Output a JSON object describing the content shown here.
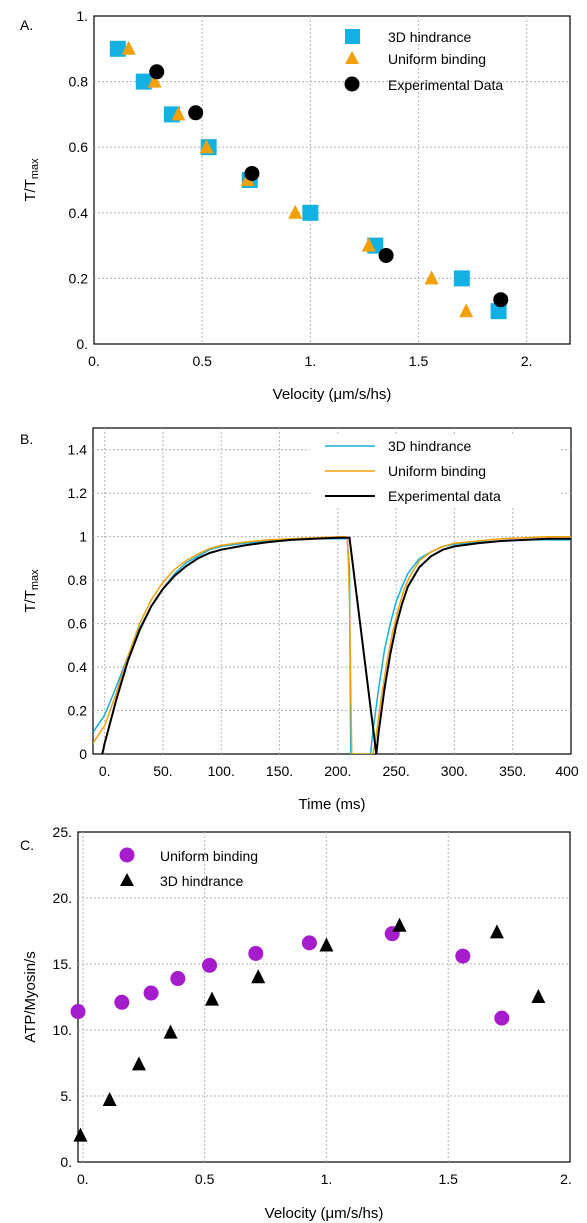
{
  "panels": [
    {
      "id": "A",
      "panel_label": "A.",
      "xlabel": "Velocity (μm/s/hs)",
      "ylabel_main": "T/T",
      "ylabel_sub": "max",
      "xticks": [
        "0.",
        "0.5",
        "1.",
        "1.5",
        "2."
      ],
      "yticks": [
        "0.",
        "0.2",
        "0.4",
        "0.6",
        "0.8",
        "1."
      ]
    },
    {
      "id": "B",
      "panel_label": "B.",
      "xlabel": "Time (ms)",
      "ylabel_main": "T/T",
      "ylabel_sub": "max",
      "xticks": [
        "0.",
        "50.",
        "100.",
        "150.",
        "200.",
        "250.",
        "300.",
        "350.",
        "400"
      ],
      "yticks": [
        "0",
        "0.2",
        "0.4",
        "0.6",
        "0.8",
        "1",
        "1.2",
        "1.4"
      ]
    },
    {
      "id": "C",
      "panel_label": "C.",
      "xlabel": "Velocity (μm/s/hs)",
      "ylabel": "ATP/Myosin/s",
      "xticks": [
        "0.",
        "0.5",
        "1.",
        "1.5",
        "2."
      ],
      "yticks": [
        "0.",
        "5.",
        "10.",
        "15.",
        "20.",
        "25."
      ]
    }
  ],
  "colors": {
    "cyan": "#12b0e3",
    "orange": "#f2a007",
    "black": "#000000",
    "purple": "#a41ccc"
  },
  "chart_data": [
    {
      "type": "scatter",
      "panel": "A",
      "xlabel": "Velocity (μm/s/hs)",
      "ylabel": "T/Tmax",
      "xlim": [
        0,
        2.2
      ],
      "ylim": [
        0,
        1
      ],
      "grid": true,
      "legend_position": "top-right",
      "series": [
        {
          "name": "3D hindrance",
          "marker": "square",
          "color": "#12b0e3",
          "x": [
            0.11,
            0.23,
            0.36,
            0.53,
            0.72,
            1.0,
            1.3,
            1.7,
            1.87
          ],
          "y": [
            0.9,
            0.8,
            0.7,
            0.6,
            0.5,
            0.4,
            0.3,
            0.2,
            0.1
          ]
        },
        {
          "name": "Uniform binding",
          "marker": "triangle",
          "color": "#f2a007",
          "x": [
            0.16,
            0.28,
            0.39,
            0.52,
            0.71,
            0.93,
            1.27,
            1.56,
            1.72
          ],
          "y": [
            0.9,
            0.8,
            0.7,
            0.6,
            0.5,
            0.4,
            0.3,
            0.2,
            0.1
          ]
        },
        {
          "name": "Experimental Data",
          "marker": "circle",
          "color": "#000000",
          "x": [
            0.29,
            0.47,
            0.73,
            1.35,
            1.88
          ],
          "y": [
            0.83,
            0.705,
            0.52,
            0.27,
            0.135
          ]
        }
      ]
    },
    {
      "type": "line",
      "panel": "B",
      "xlabel": "Time (ms)",
      "ylabel": "T/Tmax",
      "xlim": [
        -10,
        400
      ],
      "ylim": [
        0,
        1.5
      ],
      "grid": true,
      "legend_position": "top-right",
      "series": [
        {
          "name": "3D hindrance",
          "color": "#12b0e3",
          "x": [
            -10,
            0,
            10,
            20,
            30,
            40,
            50,
            60,
            70,
            80,
            90,
            100,
            120,
            140,
            160,
            180,
            200,
            208,
            210,
            211,
            228,
            230,
            235,
            240,
            245,
            250,
            255,
            260,
            270,
            280,
            290,
            300,
            320,
            340,
            360,
            380,
            400
          ],
          "y": [
            0.1,
            0.18,
            0.31,
            0.45,
            0.58,
            0.68,
            0.76,
            0.83,
            0.88,
            0.91,
            0.94,
            0.955,
            0.97,
            0.98,
            0.99,
            0.99,
            0.99,
            0.99,
            0.85,
            0,
            0,
            0.1,
            0.3,
            0.48,
            0.6,
            0.7,
            0.77,
            0.83,
            0.9,
            0.93,
            0.955,
            0.965,
            0.975,
            0.98,
            0.985,
            0.985,
            0.985
          ]
        },
        {
          "name": "Uniform binding",
          "color": "#f2a007",
          "x": [
            -10,
            0,
            10,
            20,
            30,
            40,
            50,
            60,
            70,
            80,
            90,
            100,
            120,
            140,
            160,
            180,
            200,
            208,
            209,
            210,
            211,
            212,
            230,
            232,
            237,
            242,
            247,
            252,
            257,
            262,
            270,
            280,
            290,
            300,
            320,
            340,
            360,
            380,
            400
          ],
          "y": [
            0.05,
            0.13,
            0.28,
            0.45,
            0.6,
            0.71,
            0.79,
            0.85,
            0.89,
            0.92,
            0.945,
            0.96,
            0.975,
            0.985,
            0.99,
            0.995,
            1.0,
            1.0,
            0.9,
            0.7,
            0.3,
            0,
            0,
            0.05,
            0.25,
            0.42,
            0.56,
            0.67,
            0.76,
            0.82,
            0.89,
            0.93,
            0.955,
            0.97,
            0.98,
            0.99,
            0.995,
            1.0,
            1.0
          ]
        },
        {
          "name": "Experimental data",
          "color": "#000000",
          "x": [
            -2,
            0,
            10,
            20,
            30,
            40,
            50,
            60,
            70,
            80,
            90,
            100,
            120,
            140,
            160,
            180,
            200,
            210,
            233,
            235,
            240,
            245,
            250,
            255,
            260,
            270,
            280,
            290,
            300,
            320,
            340,
            360,
            380,
            400
          ],
          "y": [
            0,
            0.05,
            0.25,
            0.43,
            0.57,
            0.68,
            0.76,
            0.82,
            0.865,
            0.9,
            0.925,
            0.94,
            0.96,
            0.975,
            0.985,
            0.99,
            0.995,
            0.995,
            0,
            0.1,
            0.3,
            0.46,
            0.59,
            0.69,
            0.77,
            0.86,
            0.91,
            0.94,
            0.955,
            0.97,
            0.98,
            0.985,
            0.99,
            0.99
          ]
        }
      ]
    },
    {
      "type": "scatter",
      "panel": "C",
      "xlabel": "Velocity (μm/s/hs)",
      "ylabel": "ATP/Myosin/s",
      "xlim": [
        -0.02,
        2.0
      ],
      "ylim": [
        0,
        25
      ],
      "grid": true,
      "legend_position": "top-left",
      "series": [
        {
          "name": "Uniform binding",
          "marker": "circle",
          "color": "#a41ccc",
          "x": [
            -0.02,
            0.16,
            0.28,
            0.39,
            0.52,
            0.71,
            0.93,
            1.27,
            1.56,
            1.72
          ],
          "y": [
            11.4,
            12.1,
            12.8,
            13.9,
            14.9,
            15.8,
            16.6,
            17.3,
            15.6,
            10.9
          ]
        },
        {
          "name": "3D hindrance",
          "marker": "triangle",
          "color": "#000000",
          "x": [
            -0.01,
            0.11,
            0.23,
            0.36,
            0.53,
            0.72,
            1.0,
            1.3,
            1.7,
            1.87
          ],
          "y": [
            2.0,
            4.7,
            7.4,
            9.8,
            12.3,
            14.0,
            16.4,
            17.9,
            17.4,
            12.5
          ]
        }
      ]
    }
  ]
}
